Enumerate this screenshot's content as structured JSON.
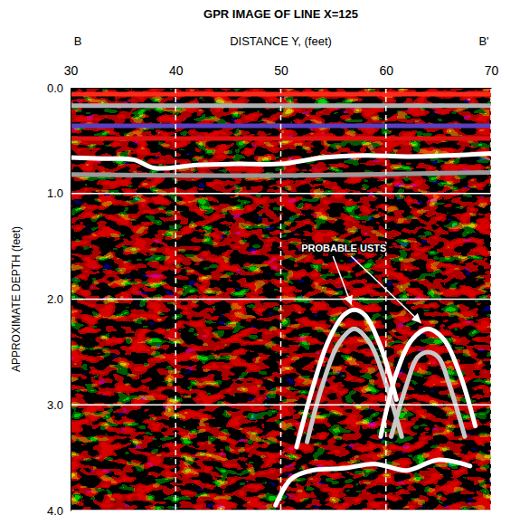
{
  "chart_data": {
    "type": "radargram",
    "title": "GPR IMAGE OF LINE X=125",
    "x_label": "DISTANCE Y, (feet)",
    "y_label": "APPROXIMATE DEPTH (feet)",
    "start_label": "B",
    "end_label": "B'",
    "xlim": [
      30,
      70
    ],
    "xticks": [
      30,
      40,
      50,
      60,
      70
    ],
    "ylim": [
      0,
      4
    ],
    "yticks": [
      {
        "value": 0,
        "label": "0.0"
      },
      {
        "value": 1,
        "label": "1.0"
      },
      {
        "value": 2,
        "label": "2.0"
      },
      {
        "value": 3,
        "label": "3.0"
      },
      {
        "value": 4,
        "label": "4.0"
      }
    ],
    "grid": true,
    "annotation": {
      "text": "PROBABLE USTS",
      "x": 56,
      "y": 1.55,
      "targets": [
        {
          "x": 56.7,
          "y": 2.05
        },
        {
          "x": 63.3,
          "y": 2.22
        }
      ]
    },
    "series": [
      {
        "color": "#ff2a1a",
        "x": [
          30,
          70
        ],
        "values": [
          0.06,
          0.06
        ]
      },
      {
        "color": "#b0b0b0",
        "x": [
          30,
          70
        ],
        "values": [
          0.17,
          0.17
        ]
      },
      {
        "color": "#5a3fc0",
        "x": [
          30,
          70
        ],
        "values": [
          0.36,
          0.36
        ]
      },
      {
        "color": "#e01010",
        "x": [
          30,
          70
        ],
        "values": [
          0.48,
          0.48
        ]
      },
      {
        "color": "#ffffff",
        "x": [
          30,
          33,
          36,
          38,
          42,
          46,
          50,
          54,
          58,
          62,
          66,
          70
        ],
        "values": [
          0.66,
          0.67,
          0.68,
          0.76,
          0.73,
          0.72,
          0.72,
          0.66,
          0.64,
          0.65,
          0.64,
          0.62
        ]
      },
      {
        "color": "#9a9a9a",
        "x": [
          30,
          50,
          70
        ],
        "values": [
          0.82,
          0.83,
          0.8
        ]
      },
      {
        "color": "#ffffff",
        "x": [
          51.5,
          53,
          54.5,
          56,
          57,
          58,
          59.5,
          61
        ],
        "values": [
          3.4,
          2.85,
          2.4,
          2.15,
          2.1,
          2.15,
          2.45,
          2.95
        ]
      },
      {
        "color": "#c8c8c8",
        "x": [
          52.5,
          54,
          55.5,
          57,
          58.5,
          60,
          61.5
        ],
        "values": [
          3.35,
          2.8,
          2.42,
          2.28,
          2.42,
          2.8,
          3.3
        ]
      },
      {
        "color": "#ffffff",
        "x": [
          59.5,
          61,
          62.5,
          64,
          65.5,
          67,
          68.5
        ],
        "values": [
          3.3,
          2.7,
          2.38,
          2.28,
          2.38,
          2.7,
          3.2
        ]
      },
      {
        "color": "#c8c8c8",
        "x": [
          60.5,
          62,
          63,
          64,
          65,
          66,
          67.5
        ],
        "values": [
          3.3,
          2.8,
          2.55,
          2.5,
          2.55,
          2.8,
          3.3
        ]
      },
      {
        "color": "#ffffff",
        "x": [
          49.5,
          51,
          53,
          56,
          59,
          62,
          65,
          68
        ],
        "values": [
          3.95,
          3.7,
          3.62,
          3.6,
          3.56,
          3.62,
          3.52,
          3.58
        ]
      }
    ]
  }
}
